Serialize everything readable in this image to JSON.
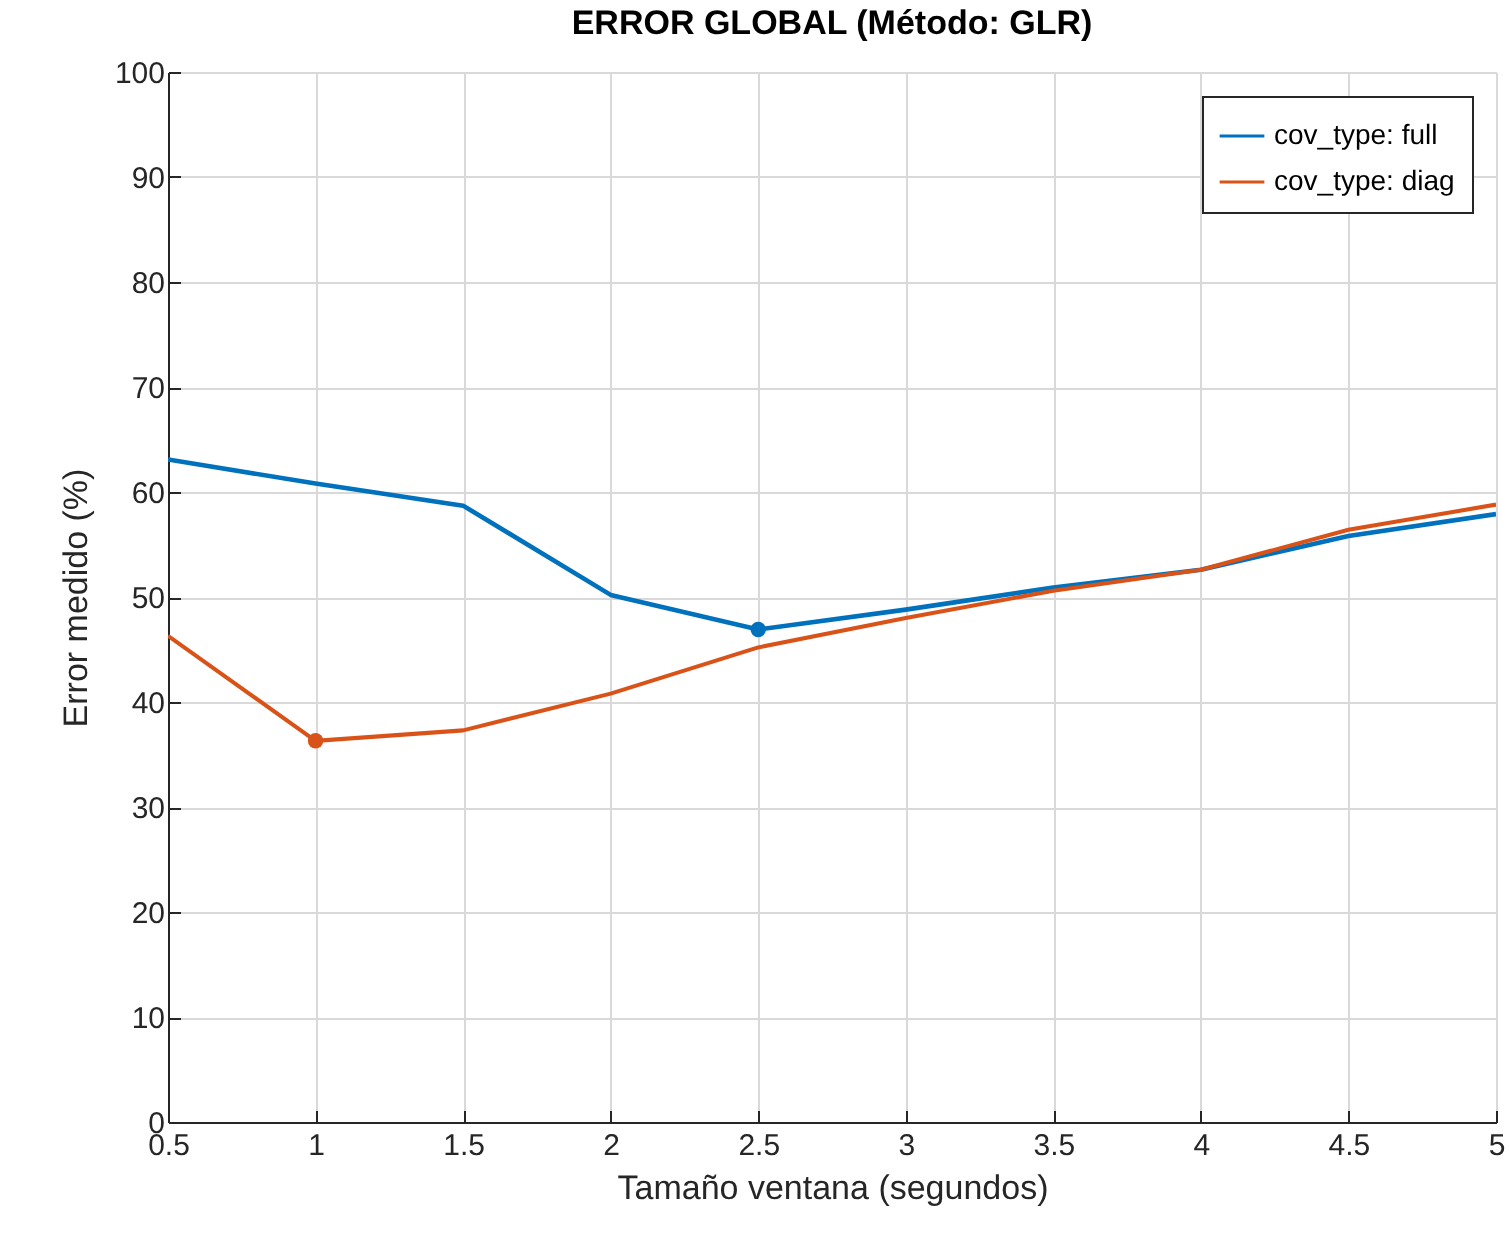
{
  "chart_data": {
    "type": "line",
    "title": "ERROR GLOBAL (Método: GLR)",
    "xlabel": "Tamaño ventana (segundos)",
    "ylabel": "Error medido (%)",
    "x": [
      0.5,
      1,
      1.5,
      2,
      2.5,
      3,
      3.5,
      4,
      4.5,
      5
    ],
    "series": [
      {
        "name": "cov_type: full",
        "color": "#0072bd",
        "values": [
          63.1,
          60.8,
          58.7,
          50.2,
          46.9,
          48.8,
          50.9,
          52.6,
          55.8,
          57.9
        ]
      },
      {
        "name": "cov_type: diag",
        "color": "#d95319",
        "values": [
          46.3,
          36.3,
          37.3,
          40.8,
          45.2,
          48.0,
          50.6,
          52.6,
          56.4,
          58.8
        ]
      },
      {
        "type": "scatter",
        "color": "#0072bd",
        "x": [
          2.5
        ],
        "values": [
          46.9
        ],
        "marker": "circle"
      },
      {
        "type": "scatter",
        "color": "#d95319",
        "x": [
          1
        ],
        "values": [
          36.3
        ],
        "marker": "circle"
      }
    ],
    "xlim": [
      0.5,
      5
    ],
    "ylim": [
      0,
      100
    ],
    "xticks": [
      0.5,
      1,
      1.5,
      2,
      2.5,
      3,
      3.5,
      4,
      4.5,
      5
    ],
    "yticks": [
      0,
      10,
      20,
      30,
      40,
      50,
      60,
      70,
      80,
      90,
      100
    ],
    "grid": true,
    "legend": "top right"
  }
}
